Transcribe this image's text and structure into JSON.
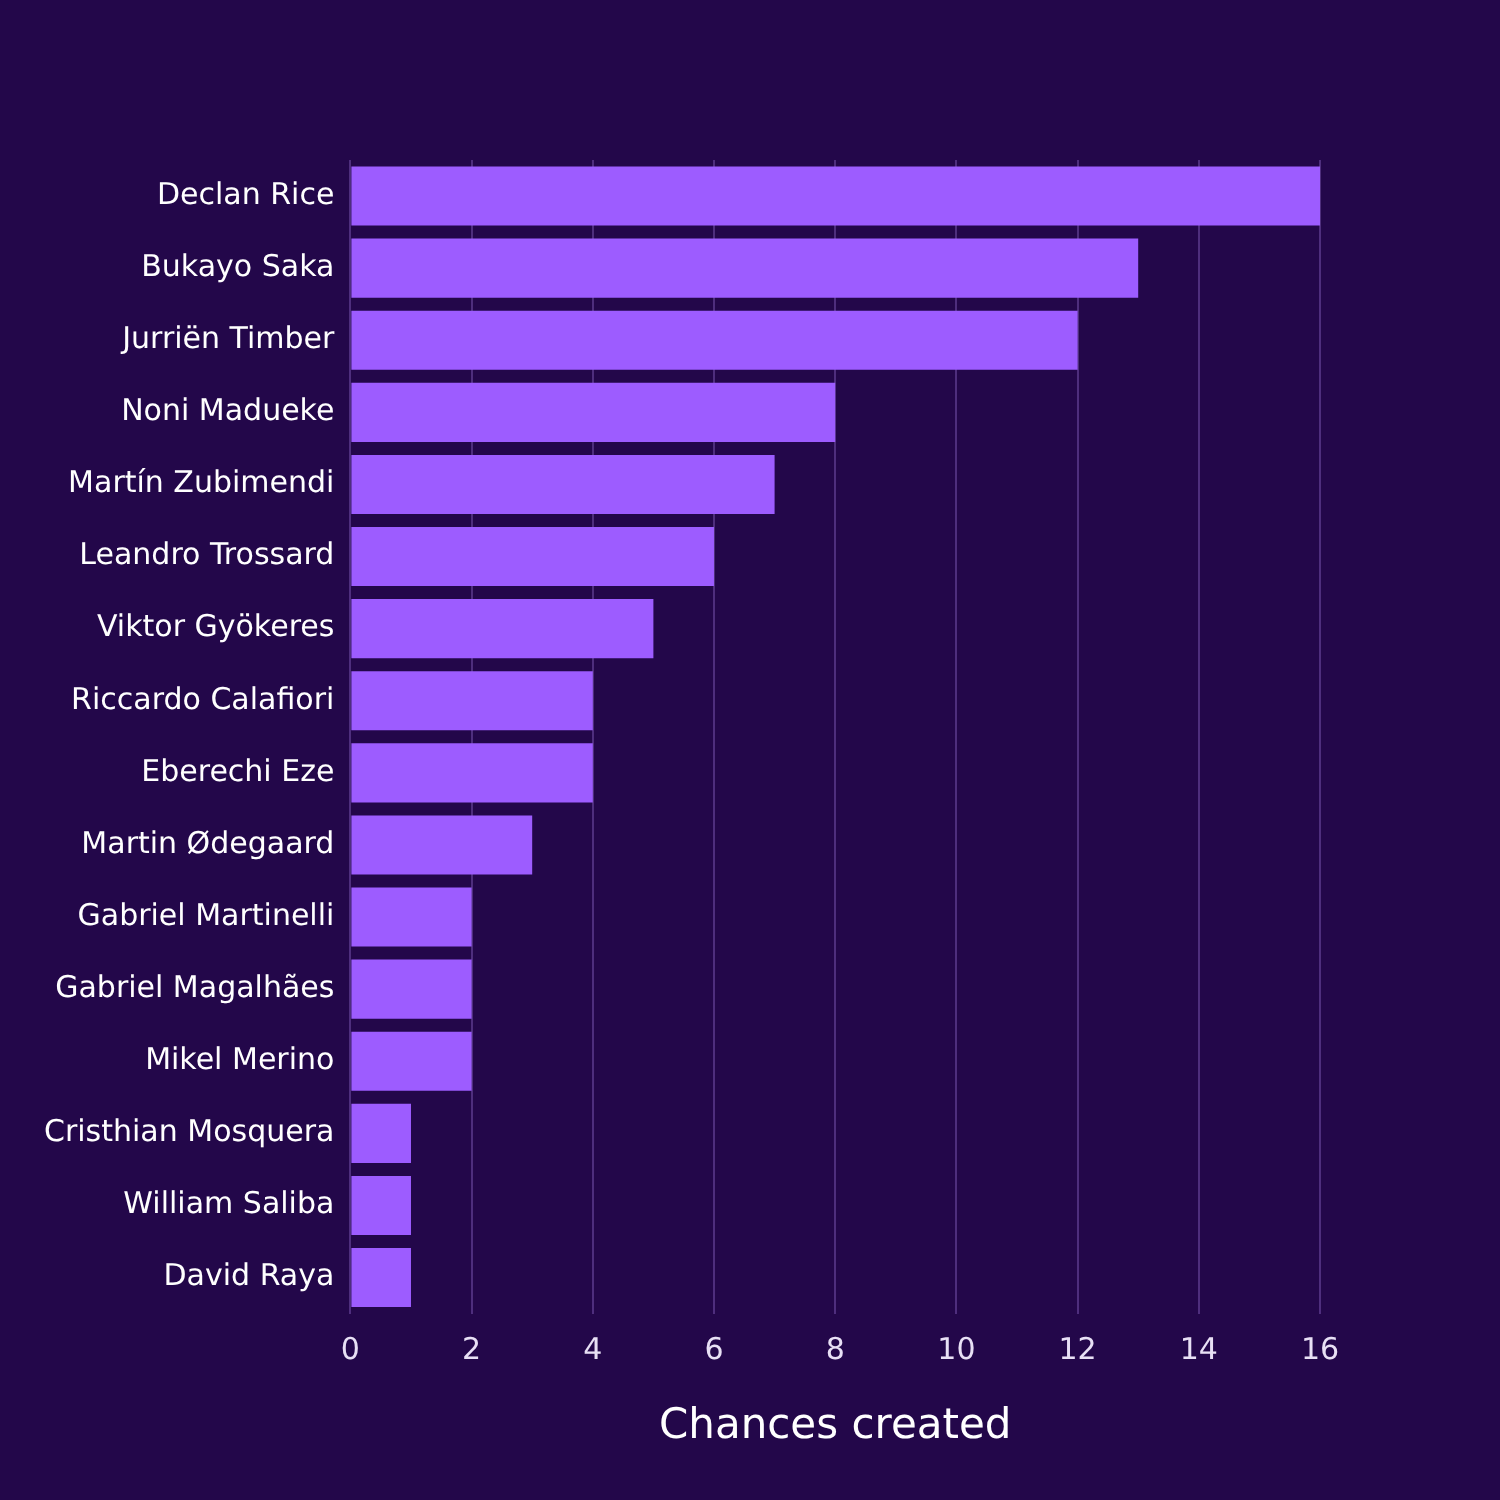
{
  "chart_data": {
    "type": "bar",
    "orientation": "horizontal",
    "xlabel": "Chances created",
    "categories": [
      "Declan Rice",
      "Bukayo Saka",
      "Jurriën Timber",
      "Noni Madueke",
      "Martín Zubimendi",
      "Leandro Trossard",
      "Viktor Gyökeres",
      "Riccardo Calafiori",
      "Eberechi Eze",
      "Martin Ødegaard",
      "Gabriel Martinelli",
      "Gabriel Magalhães",
      "Mikel Merino",
      "Cristhian Mosquera",
      "William Saliba",
      "David Raya"
    ],
    "values": [
      16,
      13,
      12,
      8,
      7,
      6,
      5,
      4,
      4,
      3,
      2,
      2,
      2,
      1,
      1,
      1
    ],
    "color": "#9d5cff",
    "xlim": [
      0,
      16
    ],
    "xticks": [
      0,
      2,
      4,
      6,
      8,
      10,
      12,
      14,
      16
    ],
    "grid": "x",
    "legend": false
  }
}
